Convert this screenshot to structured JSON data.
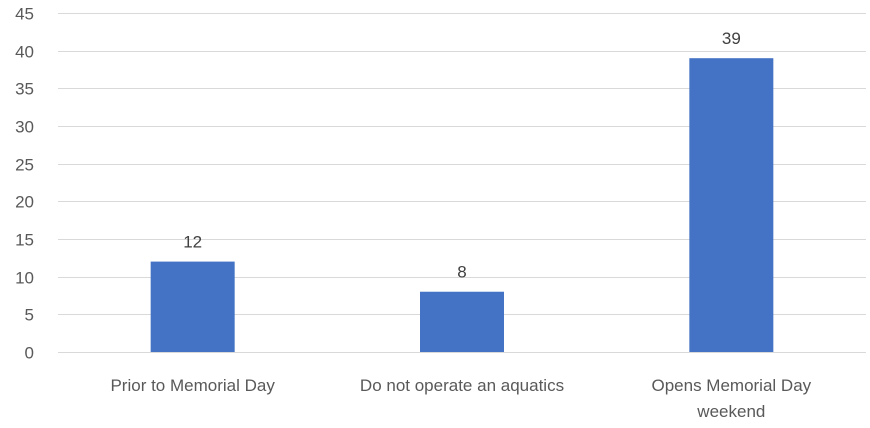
{
  "chart_data": {
    "type": "bar",
    "title": "",
    "xlabel": "",
    "ylabel": "",
    "categories": [
      [
        "Prior to Memorial Day"
      ],
      [
        "Do not operate an aquatics"
      ],
      [
        "Opens Memorial Day",
        "weekend"
      ]
    ],
    "values": [
      12,
      8,
      39
    ],
    "data_labels": [
      "12",
      "8",
      "39"
    ],
    "ylim": [
      0,
      45
    ],
    "yticks": [
      0,
      5,
      10,
      15,
      20,
      25,
      30,
      35,
      40,
      45
    ],
    "grid": true,
    "legend": "none",
    "colors": {
      "bar": "#4472C4",
      "grid": "#D9D9D9",
      "text": "#595959"
    }
  }
}
